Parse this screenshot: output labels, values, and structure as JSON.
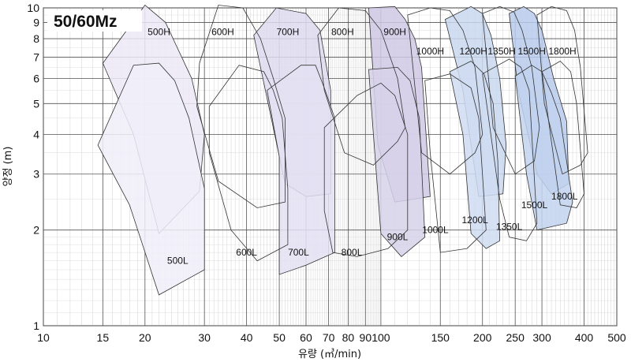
{
  "chart_data": {
    "type": "area",
    "title": "50/60Mz",
    "xlabel": "유량 (㎥/min)",
    "ylabel": "양정 (m)",
    "x_scale": "log",
    "y_scale": "log",
    "xlim": [
      10,
      500
    ],
    "ylim": [
      1,
      10
    ],
    "x_ticks": [
      10,
      15,
      20,
      30,
      40,
      50,
      60,
      70,
      80,
      90,
      100,
      150,
      200,
      250,
      300,
      400,
      500
    ],
    "x_tick_labels": [
      "10",
      "15",
      "20",
      "30",
      "40",
      "50",
      "60",
      "70",
      "80",
      "90",
      "100",
      "150",
      "200",
      "250",
      "300",
      "400",
      "500"
    ],
    "y_ticks": [
      1,
      2,
      3,
      4,
      5,
      6,
      7,
      8,
      9,
      10
    ],
    "y_tick_labels": [
      "1",
      "2",
      "3",
      "4",
      "5",
      "6",
      "7",
      "8",
      "9",
      "10"
    ],
    "grid": true,
    "series": [
      {
        "name": "500H",
        "color": "#ece9f7",
        "label_at": [
          22,
          8.4
        ],
        "points": [
          [
            15,
            6.7
          ],
          [
            20,
            10.2
          ],
          [
            23,
            9.0
          ],
          [
            24.5,
            7.8
          ],
          [
            27.5,
            6.0
          ],
          [
            30,
            4.0
          ],
          [
            29,
            2.65
          ],
          [
            22,
            1.95
          ],
          [
            18.5,
            4.0
          ]
        ]
      },
      {
        "name": "500L",
        "color": "#f0eef9",
        "label_at": [
          25,
          1.6
        ],
        "points": [
          [
            14.5,
            3.7
          ],
          [
            18.5,
            6.6
          ],
          [
            22,
            6.7
          ],
          [
            24.5,
            5.9
          ],
          [
            27,
            4.5
          ],
          [
            30,
            2.7
          ],
          [
            30,
            1.5
          ],
          [
            22,
            1.25
          ],
          [
            18,
            2.4
          ]
        ]
      },
      {
        "name": "600H",
        "color": "none",
        "label_at": [
          34,
          8.4
        ],
        "points": [
          [
            29,
            6.7
          ],
          [
            33,
            10.2
          ],
          [
            39,
            10.0
          ],
          [
            44,
            8.0
          ],
          [
            48,
            6.0
          ],
          [
            52,
            4.5
          ],
          [
            52,
            2.45
          ],
          [
            43,
            2.35
          ],
          [
            33,
            2.85
          ],
          [
            28.5,
            4.9
          ]
        ]
      },
      {
        "name": "600L",
        "color": "none",
        "label_at": [
          40,
          1.7
        ],
        "points": [
          [
            31,
            4.9
          ],
          [
            38,
            6.6
          ],
          [
            45,
            6.3
          ],
          [
            48,
            5.5
          ],
          [
            51,
            4.5
          ],
          [
            53,
            2.7
          ],
          [
            53,
            1.8
          ],
          [
            43,
            1.6
          ],
          [
            36,
            2.0
          ],
          [
            31,
            3.5
          ]
        ]
      },
      {
        "name": "700H",
        "color": "#dedaf0",
        "label_at": [
          53,
          8.4
        ],
        "points": [
          [
            42,
            8.2
          ],
          [
            49,
            10.0
          ],
          [
            60,
            9.6
          ],
          [
            66,
            8.5
          ],
          [
            71,
            5.5
          ],
          [
            71,
            2.6
          ],
          [
            60,
            2.55
          ],
          [
            52,
            2.8
          ],
          [
            45,
            5.8
          ]
        ]
      },
      {
        "name": "700L",
        "color": "#e4e1f3",
        "label_at": [
          57,
          1.7
        ],
        "points": [
          [
            46,
            5.5
          ],
          [
            58,
            6.6
          ],
          [
            64,
            6.6
          ],
          [
            68,
            5.6
          ],
          [
            73,
            4.5
          ],
          [
            73,
            1.7
          ],
          [
            60,
            1.55
          ],
          [
            50,
            1.45
          ],
          [
            50,
            3.4
          ]
        ]
      },
      {
        "name": "800H",
        "color": "none",
        "label_at": [
          77,
          8.4
        ],
        "points": [
          [
            65,
            8.2
          ],
          [
            75,
            10.0
          ],
          [
            90,
            9.8
          ],
          [
            100,
            8.5
          ],
          [
            112,
            6.0
          ],
          [
            118,
            4.2
          ],
          [
            112,
            3.8
          ],
          [
            95,
            3.2
          ],
          [
            78,
            3.5
          ],
          [
            68,
            5.5
          ]
        ]
      },
      {
        "name": "800L",
        "color": "none",
        "label_at": [
          82,
          1.7
        ],
        "points": [
          [
            68,
            4.2
          ],
          [
            85,
            5.3
          ],
          [
            100,
            5.8
          ],
          [
            110,
            5.3
          ],
          [
            120,
            4.0
          ],
          [
            120,
            2.0
          ],
          [
            105,
            1.75
          ],
          [
            85,
            1.65
          ],
          [
            72,
            1.7
          ],
          [
            68,
            2.3
          ]
        ]
      },
      {
        "name": "900H",
        "color": "#cfc9e5",
        "label_at": [
          110,
          8.4
        ],
        "points": [
          [
            92,
            10.0
          ],
          [
            110,
            10.1
          ],
          [
            118,
            9.2
          ],
          [
            126,
            8.0
          ],
          [
            132,
            6.5
          ],
          [
            140,
            2.55
          ],
          [
            110,
            2.45
          ],
          [
            98,
            3.7
          ]
        ]
      },
      {
        "name": "900L",
        "color": "#d7d2ea",
        "label_at": [
          112,
          1.9
        ],
        "points": [
          [
            92,
            6.4
          ],
          [
            112,
            6.5
          ],
          [
            122,
            5.9
          ],
          [
            130,
            4.5
          ],
          [
            135,
            1.9
          ],
          [
            115,
            1.65
          ],
          [
            100,
            1.95
          ],
          [
            95,
            4.0
          ]
        ]
      },
      {
        "name": "1000H",
        "color": "none",
        "label_at": [
          140,
          7.3
        ],
        "points": [
          [
            120,
            9.5
          ],
          [
            140,
            10.0
          ],
          [
            160,
            9.8
          ],
          [
            175,
            8.5
          ],
          [
            190,
            6.5
          ],
          [
            200,
            4.0
          ],
          [
            190,
            3.5
          ],
          [
            160,
            3.0
          ],
          [
            132,
            3.5
          ]
        ]
      },
      {
        "name": "1000L",
        "color": "none",
        "label_at": [
          145,
          2.0
        ],
        "points": [
          [
            135,
            5.9
          ],
          [
            160,
            6.2
          ],
          [
            185,
            5.6
          ],
          [
            195,
            4.5
          ],
          [
            205,
            2.0
          ],
          [
            180,
            1.75
          ],
          [
            150,
            1.7
          ],
          [
            140,
            3.5
          ]
        ]
      },
      {
        "name": "1200H",
        "color": "#c9d8f0",
        "label_at": [
          188,
          7.3
        ],
        "points": [
          [
            155,
            9.2
          ],
          [
            185,
            10.1
          ],
          [
            200,
            9.6
          ],
          [
            212,
            8.2
          ],
          [
            225,
            6.0
          ],
          [
            235,
            3.7
          ],
          [
            230,
            2.6
          ],
          [
            195,
            2.55
          ],
          [
            175,
            5.5
          ]
        ]
      },
      {
        "name": "1200L",
        "color": "#cfdcf2",
        "label_at": [
          190,
          2.15
        ],
        "points": [
          [
            160,
            6.3
          ],
          [
            185,
            6.8
          ],
          [
            202,
            6.2
          ],
          [
            215,
            5.0
          ],
          [
            222,
            3.3
          ],
          [
            225,
            1.85
          ],
          [
            205,
            1.75
          ],
          [
            185,
            1.95
          ],
          [
            175,
            4.0
          ]
        ]
      },
      {
        "name": "1350H",
        "color": "none",
        "label_at": [
          228,
          7.3
        ],
        "points": [
          [
            200,
            9.6
          ],
          [
            225,
            10.1
          ],
          [
            248,
            9.7
          ],
          [
            262,
            8.5
          ],
          [
            280,
            6.5
          ],
          [
            295,
            4.2
          ],
          [
            285,
            3.3
          ],
          [
            250,
            3.0
          ],
          [
            215,
            4.2
          ]
        ]
      },
      {
        "name": "1350L",
        "color": "none",
        "label_at": [
          240,
          2.05
        ],
        "points": [
          [
            200,
            6.2
          ],
          [
            240,
            6.9
          ],
          [
            260,
            6.5
          ],
          [
            275,
            5.5
          ],
          [
            290,
            2.1
          ],
          [
            270,
            1.85
          ],
          [
            240,
            1.9
          ],
          [
            225,
            2.5
          ]
        ]
      },
      {
        "name": "1500H",
        "color": "#b9cbec",
        "label_at": [
          280,
          7.3
        ],
        "points": [
          [
            240,
            9.6
          ],
          [
            265,
            10.1
          ],
          [
            285,
            9.6
          ],
          [
            300,
            8.5
          ],
          [
            325,
            6.0
          ],
          [
            355,
            4.4
          ],
          [
            360,
            2.8
          ],
          [
            320,
            2.6
          ],
          [
            290,
            3.0
          ],
          [
            255,
            5.5
          ]
        ]
      },
      {
        "name": "1500L",
        "color": "#c2d2ef",
        "label_at": [
          285,
          2.4
        ],
        "points": [
          [
            250,
            6.1
          ],
          [
            280,
            6.6
          ],
          [
            300,
            6.3
          ],
          [
            320,
            5.4
          ],
          [
            340,
            4.5
          ],
          [
            370,
            2.45
          ],
          [
            355,
            2.1
          ],
          [
            290,
            2.0
          ],
          [
            270,
            3.0
          ]
        ]
      },
      {
        "name": "1800H",
        "color": "none",
        "label_at": [
          345,
          7.3
        ],
        "points": [
          [
            290,
            9.5
          ],
          [
            320,
            10.1
          ],
          [
            355,
            9.8
          ],
          [
            375,
            8.5
          ],
          [
            390,
            6.5
          ],
          [
            410,
            3.5
          ],
          [
            390,
            3.2
          ],
          [
            345,
            3.0
          ],
          [
            305,
            5.0
          ]
        ]
      },
      {
        "name": "1800L",
        "color": "none",
        "label_at": [
          350,
          2.55
        ],
        "points": [
          [
            300,
            6.3
          ],
          [
            340,
            6.8
          ],
          [
            365,
            6.3
          ],
          [
            380,
            5.0
          ],
          [
            400,
            2.6
          ],
          [
            380,
            2.35
          ],
          [
            340,
            2.4
          ],
          [
            320,
            3.8
          ]
        ]
      }
    ]
  }
}
